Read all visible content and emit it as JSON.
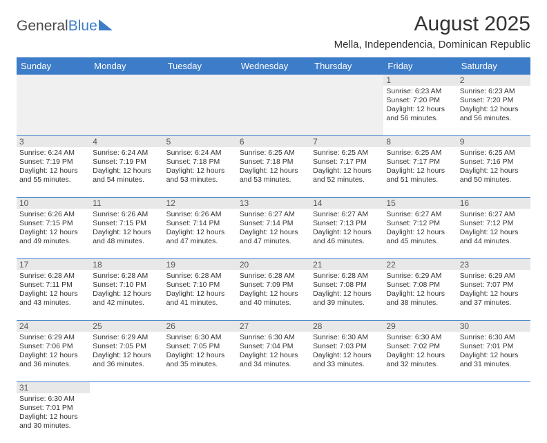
{
  "brand": {
    "part1": "General",
    "part2": "Blue"
  },
  "title": "August 2025",
  "location": "Mella, Independencia, Dominican Republic",
  "colors": {
    "header_bg": "#3d7cc9",
    "header_text": "#ffffff",
    "daynum_bg": "#e8e8e8",
    "empty_bg": "#f0f0f0",
    "text": "#333333",
    "row_border": "#3d7cc9"
  },
  "daysOfWeek": [
    "Sunday",
    "Monday",
    "Tuesday",
    "Wednesday",
    "Thursday",
    "Friday",
    "Saturday"
  ],
  "weeks": [
    [
      {
        "empty": true
      },
      {
        "empty": true
      },
      {
        "empty": true
      },
      {
        "empty": true
      },
      {
        "empty": true
      },
      {
        "day": "1",
        "sunrise": "Sunrise: 6:23 AM",
        "sunset": "Sunset: 7:20 PM",
        "daylight": "Daylight: 12 hours and 56 minutes."
      },
      {
        "day": "2",
        "sunrise": "Sunrise: 6:23 AM",
        "sunset": "Sunset: 7:20 PM",
        "daylight": "Daylight: 12 hours and 56 minutes."
      }
    ],
    [
      {
        "day": "3",
        "sunrise": "Sunrise: 6:24 AM",
        "sunset": "Sunset: 7:19 PM",
        "daylight": "Daylight: 12 hours and 55 minutes."
      },
      {
        "day": "4",
        "sunrise": "Sunrise: 6:24 AM",
        "sunset": "Sunset: 7:19 PM",
        "daylight": "Daylight: 12 hours and 54 minutes."
      },
      {
        "day": "5",
        "sunrise": "Sunrise: 6:24 AM",
        "sunset": "Sunset: 7:18 PM",
        "daylight": "Daylight: 12 hours and 53 minutes."
      },
      {
        "day": "6",
        "sunrise": "Sunrise: 6:25 AM",
        "sunset": "Sunset: 7:18 PM",
        "daylight": "Daylight: 12 hours and 53 minutes."
      },
      {
        "day": "7",
        "sunrise": "Sunrise: 6:25 AM",
        "sunset": "Sunset: 7:17 PM",
        "daylight": "Daylight: 12 hours and 52 minutes."
      },
      {
        "day": "8",
        "sunrise": "Sunrise: 6:25 AM",
        "sunset": "Sunset: 7:17 PM",
        "daylight": "Daylight: 12 hours and 51 minutes."
      },
      {
        "day": "9",
        "sunrise": "Sunrise: 6:25 AM",
        "sunset": "Sunset: 7:16 PM",
        "daylight": "Daylight: 12 hours and 50 minutes."
      }
    ],
    [
      {
        "day": "10",
        "sunrise": "Sunrise: 6:26 AM",
        "sunset": "Sunset: 7:15 PM",
        "daylight": "Daylight: 12 hours and 49 minutes."
      },
      {
        "day": "11",
        "sunrise": "Sunrise: 6:26 AM",
        "sunset": "Sunset: 7:15 PM",
        "daylight": "Daylight: 12 hours and 48 minutes."
      },
      {
        "day": "12",
        "sunrise": "Sunrise: 6:26 AM",
        "sunset": "Sunset: 7:14 PM",
        "daylight": "Daylight: 12 hours and 47 minutes."
      },
      {
        "day": "13",
        "sunrise": "Sunrise: 6:27 AM",
        "sunset": "Sunset: 7:14 PM",
        "daylight": "Daylight: 12 hours and 47 minutes."
      },
      {
        "day": "14",
        "sunrise": "Sunrise: 6:27 AM",
        "sunset": "Sunset: 7:13 PM",
        "daylight": "Daylight: 12 hours and 46 minutes."
      },
      {
        "day": "15",
        "sunrise": "Sunrise: 6:27 AM",
        "sunset": "Sunset: 7:12 PM",
        "daylight": "Daylight: 12 hours and 45 minutes."
      },
      {
        "day": "16",
        "sunrise": "Sunrise: 6:27 AM",
        "sunset": "Sunset: 7:12 PM",
        "daylight": "Daylight: 12 hours and 44 minutes."
      }
    ],
    [
      {
        "day": "17",
        "sunrise": "Sunrise: 6:28 AM",
        "sunset": "Sunset: 7:11 PM",
        "daylight": "Daylight: 12 hours and 43 minutes."
      },
      {
        "day": "18",
        "sunrise": "Sunrise: 6:28 AM",
        "sunset": "Sunset: 7:10 PM",
        "daylight": "Daylight: 12 hours and 42 minutes."
      },
      {
        "day": "19",
        "sunrise": "Sunrise: 6:28 AM",
        "sunset": "Sunset: 7:10 PM",
        "daylight": "Daylight: 12 hours and 41 minutes."
      },
      {
        "day": "20",
        "sunrise": "Sunrise: 6:28 AM",
        "sunset": "Sunset: 7:09 PM",
        "daylight": "Daylight: 12 hours and 40 minutes."
      },
      {
        "day": "21",
        "sunrise": "Sunrise: 6:28 AM",
        "sunset": "Sunset: 7:08 PM",
        "daylight": "Daylight: 12 hours and 39 minutes."
      },
      {
        "day": "22",
        "sunrise": "Sunrise: 6:29 AM",
        "sunset": "Sunset: 7:08 PM",
        "daylight": "Daylight: 12 hours and 38 minutes."
      },
      {
        "day": "23",
        "sunrise": "Sunrise: 6:29 AM",
        "sunset": "Sunset: 7:07 PM",
        "daylight": "Daylight: 12 hours and 37 minutes."
      }
    ],
    [
      {
        "day": "24",
        "sunrise": "Sunrise: 6:29 AM",
        "sunset": "Sunset: 7:06 PM",
        "daylight": "Daylight: 12 hours and 36 minutes."
      },
      {
        "day": "25",
        "sunrise": "Sunrise: 6:29 AM",
        "sunset": "Sunset: 7:05 PM",
        "daylight": "Daylight: 12 hours and 36 minutes."
      },
      {
        "day": "26",
        "sunrise": "Sunrise: 6:30 AM",
        "sunset": "Sunset: 7:05 PM",
        "daylight": "Daylight: 12 hours and 35 minutes."
      },
      {
        "day": "27",
        "sunrise": "Sunrise: 6:30 AM",
        "sunset": "Sunset: 7:04 PM",
        "daylight": "Daylight: 12 hours and 34 minutes."
      },
      {
        "day": "28",
        "sunrise": "Sunrise: 6:30 AM",
        "sunset": "Sunset: 7:03 PM",
        "daylight": "Daylight: 12 hours and 33 minutes."
      },
      {
        "day": "29",
        "sunrise": "Sunrise: 6:30 AM",
        "sunset": "Sunset: 7:02 PM",
        "daylight": "Daylight: 12 hours and 32 minutes."
      },
      {
        "day": "30",
        "sunrise": "Sunrise: 6:30 AM",
        "sunset": "Sunset: 7:01 PM",
        "daylight": "Daylight: 12 hours and 31 minutes."
      }
    ],
    [
      {
        "day": "31",
        "sunrise": "Sunrise: 6:30 AM",
        "sunset": "Sunset: 7:01 PM",
        "daylight": "Daylight: 12 hours and 30 minutes."
      },
      {
        "empty": true,
        "noshade": true
      },
      {
        "empty": true,
        "noshade": true
      },
      {
        "empty": true,
        "noshade": true
      },
      {
        "empty": true,
        "noshade": true
      },
      {
        "empty": true,
        "noshade": true
      },
      {
        "empty": true,
        "noshade": true
      }
    ]
  ]
}
